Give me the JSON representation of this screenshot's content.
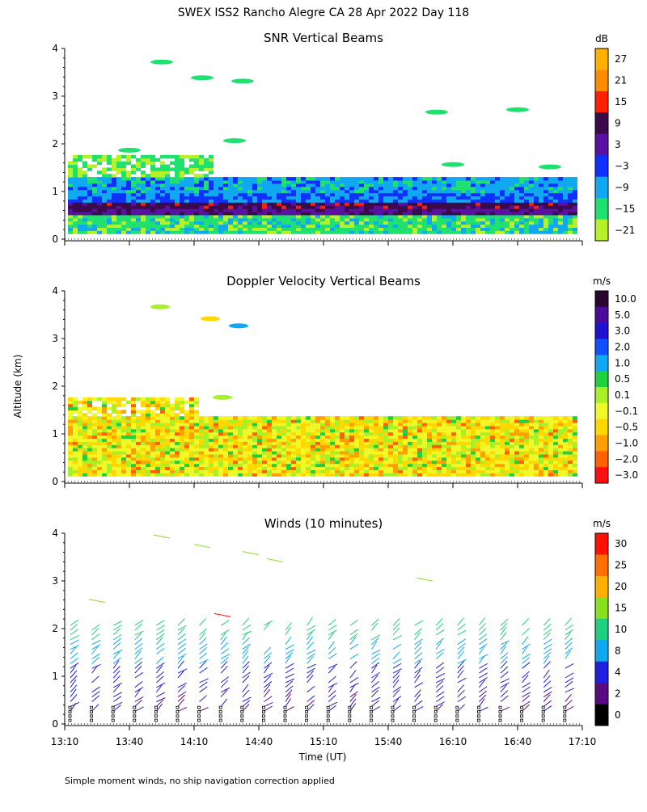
{
  "figure": {
    "title": "SWEX ISS2 Rancho Alegre CA  28 Apr 2022 Day 118",
    "ylabel": "Altitude (km)",
    "xlabel": "Time (UT)",
    "footnote": "Simple moment winds, no ship navigation correction applied",
    "x_ticks": [
      "13:10",
      "13:40",
      "14:10",
      "14:40",
      "15:10",
      "15:40",
      "16:10",
      "16:40",
      "17:10"
    ],
    "y_ticks": [
      "0",
      "1",
      "2",
      "3",
      "4"
    ]
  },
  "chart_data": [
    {
      "type": "heatmap",
      "title": "SNR Vertical Beams",
      "colorbar_unit": "dB",
      "colorbar_labels": [
        "27",
        "21",
        "15",
        "9",
        "3",
        "−3",
        "−9",
        "−15",
        "−21"
      ],
      "colorbar_colors": [
        "#ffb000",
        "#ff8c00",
        "#ff2000",
        "#3a0a4a",
        "#5a10a0",
        "#1030ff",
        "#10a8f0",
        "#20e070",
        "#b8f028"
      ],
      "x_range": [
        "13:10",
        "17:10"
      ],
      "y_range_km": [
        0,
        4
      ],
      "layers": [
        {
          "altitude_km": [
            0.15,
            0.55
          ],
          "snr_db": -12
        },
        {
          "altitude_km": [
            0.5,
            0.75
          ],
          "snr_db": 6
        },
        {
          "altitude_km": [
            0.75,
            1.3
          ],
          "snr_db": -6
        },
        {
          "altitude_km": [
            1.3,
            1.8
          ],
          "snr_db": -15
        }
      ]
    },
    {
      "type": "heatmap",
      "title": "Doppler Velocity Vertical Beams",
      "colorbar_unit": "m/s",
      "colorbar_labels": [
        "10.0",
        "5.0",
        "3.0",
        "2.0",
        "1.0",
        "0.5",
        "0.1",
        "−0.1",
        "−0.5",
        "−1.0",
        "−2.0",
        "−3.0"
      ],
      "colorbar_colors": [
        "#2a0630",
        "#4a0a9a",
        "#2010d0",
        "#1050ff",
        "#10a8f0",
        "#20d040",
        "#a8f028",
        "#f0f828",
        "#ffd800",
        "#ffa000",
        "#ff6000",
        "#ff1010"
      ],
      "x_range": [
        "13:10",
        "17:10"
      ],
      "y_range_km": [
        0,
        4
      ]
    },
    {
      "type": "scatter",
      "title": "Winds (10 minutes)",
      "colorbar_unit": "m/s",
      "colorbar_labels": [
        "30",
        "25",
        "20",
        "15",
        "10",
        "8",
        "4",
        "2",
        "0"
      ],
      "colorbar_colors": [
        "#ff1000",
        "#ff7000",
        "#ffb000",
        "#88e020",
        "#20d080",
        "#10a8f0",
        "#2020e0",
        "#5a0a80",
        "#000000"
      ],
      "x_range": [
        "13:10",
        "17:10"
      ],
      "y_range_km": [
        0,
        4
      ],
      "profile_times": [
        "13:15",
        "13:25",
        "13:35",
        "13:45",
        "13:55",
        "14:05",
        "14:15",
        "14:25",
        "14:35",
        "14:45",
        "14:55",
        "15:05",
        "15:15",
        "15:25",
        "15:35",
        "15:45",
        "15:55",
        "16:05",
        "16:15",
        "16:25",
        "16:35",
        "16:45",
        "16:55",
        "17:05"
      ]
    }
  ]
}
